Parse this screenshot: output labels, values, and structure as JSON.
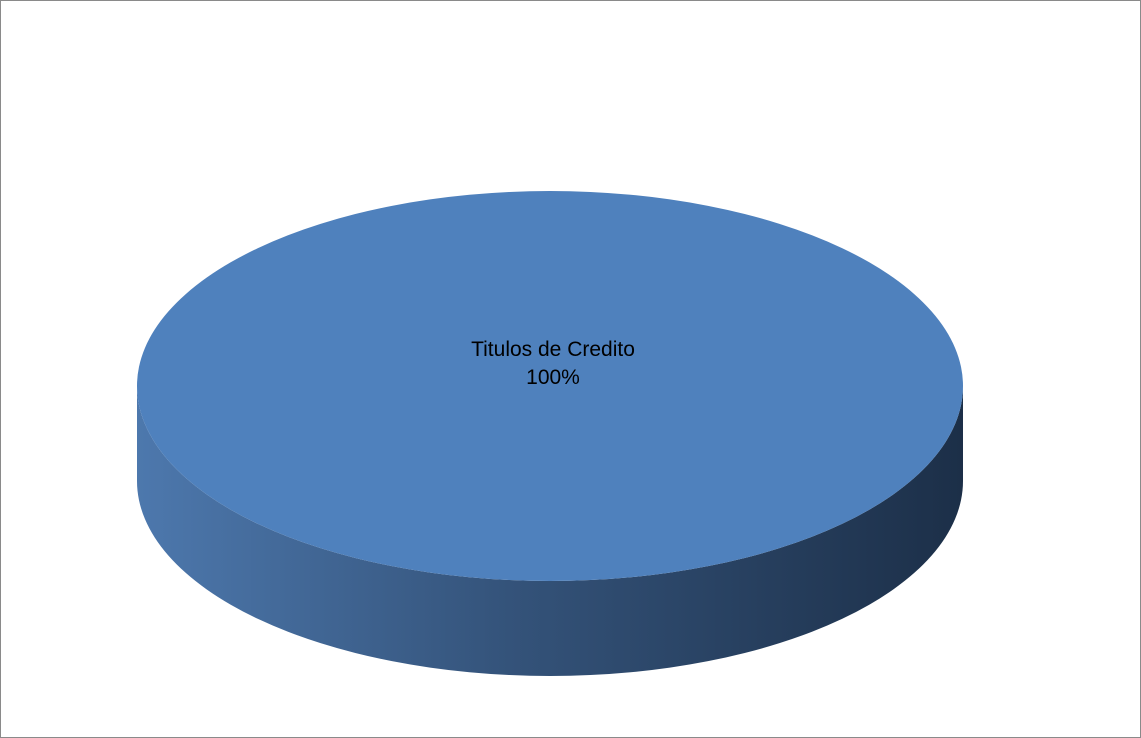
{
  "chart_data": {
    "type": "pie",
    "title": "",
    "style": "3d",
    "slices": [
      {
        "label": "Titulos de Credito",
        "value": 100,
        "percent_label": "100%",
        "color": "#4f81bd"
      }
    ]
  }
}
